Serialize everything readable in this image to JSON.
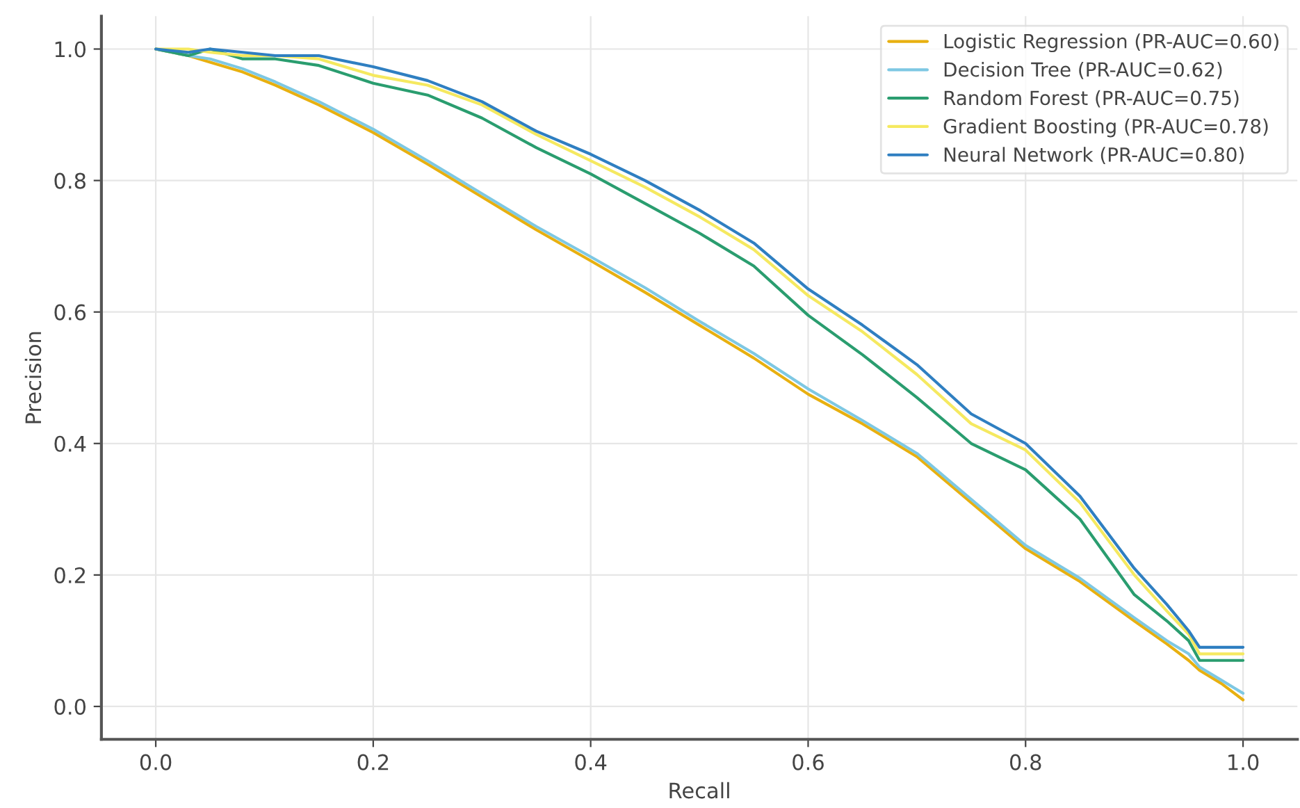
{
  "chart_data": {
    "type": "line",
    "xlabel": "Recall",
    "ylabel": "Precision",
    "x": [
      0,
      0.03,
      0.05,
      0.08,
      0.11,
      0.15,
      0.2,
      0.25,
      0.3,
      0.35,
      0.4,
      0.45,
      0.5,
      0.55,
      0.6,
      0.65,
      0.7,
      0.75,
      0.8,
      0.85,
      0.9,
      0.93,
      0.95,
      0.96,
      0.98,
      1.0
    ],
    "series": [
      {
        "name": "Logistic Regression (PR-AUC=0.60)",
        "color": "#e8b010",
        "values": [
          1.0,
          0.99,
          0.98,
          0.965,
          0.945,
          0.915,
          0.873,
          0.825,
          0.775,
          0.725,
          0.678,
          0.63,
          0.58,
          0.53,
          0.475,
          0.43,
          0.38,
          0.31,
          0.24,
          0.19,
          0.13,
          0.095,
          0.07,
          0.055,
          0.035,
          0.01
        ]
      },
      {
        "name": "Decision Tree (PR-AUC=0.62)",
        "color": "#7ec8e3",
        "values": [
          1.0,
          0.99,
          0.985,
          0.97,
          0.95,
          0.92,
          0.878,
          0.83,
          0.78,
          0.73,
          0.684,
          0.637,
          0.586,
          0.537,
          0.483,
          0.435,
          0.385,
          0.315,
          0.245,
          0.195,
          0.135,
          0.1,
          0.08,
          0.06,
          0.04,
          0.02
        ]
      },
      {
        "name": "Random Forest (PR-AUC=0.75)",
        "color": "#2a9d6f",
        "values": [
          1.0,
          0.99,
          1.0,
          0.985,
          0.985,
          0.975,
          0.948,
          0.93,
          0.895,
          0.85,
          0.81,
          0.765,
          0.72,
          0.67,
          0.595,
          0.535,
          0.47,
          0.4,
          0.36,
          0.285,
          0.17,
          0.13,
          0.1,
          0.07,
          0.07,
          0.07
        ]
      },
      {
        "name": "Gradient Boosting (PR-AUC=0.78)",
        "color": "#f5e960",
        "values": [
          1.0,
          1.0,
          0.995,
          0.99,
          0.99,
          0.985,
          0.96,
          0.945,
          0.915,
          0.87,
          0.83,
          0.79,
          0.745,
          0.695,
          0.625,
          0.57,
          0.505,
          0.43,
          0.39,
          0.31,
          0.2,
          0.145,
          0.11,
          0.08,
          0.08,
          0.08
        ]
      },
      {
        "name": "Neural Network (PR-AUC=0.80)",
        "color": "#2f7fc1",
        "values": [
          1.0,
          0.995,
          1.0,
          0.995,
          0.99,
          0.99,
          0.973,
          0.952,
          0.92,
          0.875,
          0.84,
          0.8,
          0.755,
          0.705,
          0.635,
          0.58,
          0.52,
          0.445,
          0.4,
          0.32,
          0.21,
          0.155,
          0.115,
          0.09,
          0.09,
          0.09
        ]
      }
    ],
    "xlim": [
      -0.05,
      1.05
    ],
    "ylim": [
      -0.05,
      1.05
    ],
    "xticks": [
      {
        "value": 0,
        "label": "0.0"
      },
      0.2,
      0.4,
      0.6,
      0.8,
      {
        "value": 1,
        "label": "1.0"
      }
    ],
    "yticks": [
      {
        "value": 0,
        "label": "0.0"
      },
      0.2,
      0.4,
      0.6,
      0.8,
      {
        "value": 1,
        "label": "1.0"
      }
    ],
    "grid": true,
    "legend": "top right",
    "line_style": "solid",
    "marker": "none"
  }
}
